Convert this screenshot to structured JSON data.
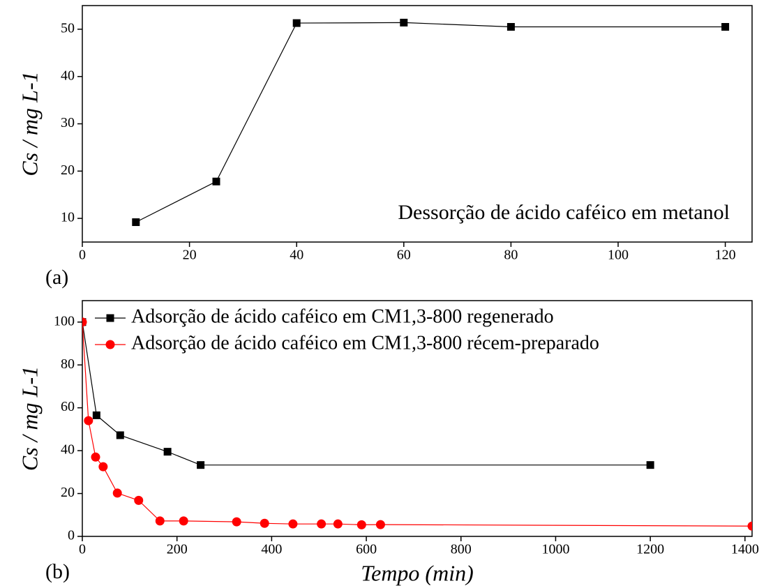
{
  "chart_data": [
    {
      "type": "line",
      "y_label": "Cs / mg L-1",
      "annotation": "Dessorção de ácido caféico em metanol",
      "panel_label": "(a)",
      "series": [
        {
          "color": "#000000",
          "marker": "square",
          "x": [
            10,
            25,
            40,
            60,
            80,
            120
          ],
          "values": [
            9.2,
            17.8,
            51.3,
            51.4,
            50.5,
            50.5
          ]
        }
      ],
      "xlim": [
        0,
        125
      ],
      "ylim": [
        5,
        55
      ],
      "xticks": [
        0,
        20,
        40,
        60,
        80,
        100,
        120
      ],
      "yticks": [
        10,
        20,
        30,
        40,
        50
      ]
    },
    {
      "type": "line",
      "y_label": "Cs / mg L-1",
      "x_label": "Tempo (min)",
      "panel_label": "(b)",
      "legend": "upper left",
      "series": [
        {
          "name": "Adsorção de ácido caféico em CM1,3-800 regenerado",
          "color": "#000000",
          "marker": "square",
          "x": [
            0,
            30,
            80,
            180,
            250,
            1200
          ],
          "values": [
            100,
            56.5,
            47.2,
            39.5,
            33.3,
            33.3
          ]
        },
        {
          "name": "Adsorção de ácido caféico em CM1,3-800 récem-preparado",
          "color": "#ff0000",
          "marker": "circle",
          "x": [
            0,
            13,
            28,
            44,
            74,
            119,
            164,
            214,
            326,
            385,
            445,
            505,
            540,
            590,
            630,
            1415
          ],
          "values": [
            100,
            54,
            37,
            32.5,
            20.2,
            16.8,
            7.2,
            7.2,
            6.8,
            6.1,
            5.8,
            5.8,
            5.8,
            5.4,
            5.5,
            4.8
          ]
        }
      ],
      "xlim": [
        0,
        1415
      ],
      "ylim": [
        0,
        110
      ],
      "xticks": [
        0,
        200,
        400,
        600,
        800,
        1000,
        1200,
        1400
      ],
      "yticks": [
        0,
        20,
        40,
        60,
        80,
        100
      ]
    }
  ]
}
